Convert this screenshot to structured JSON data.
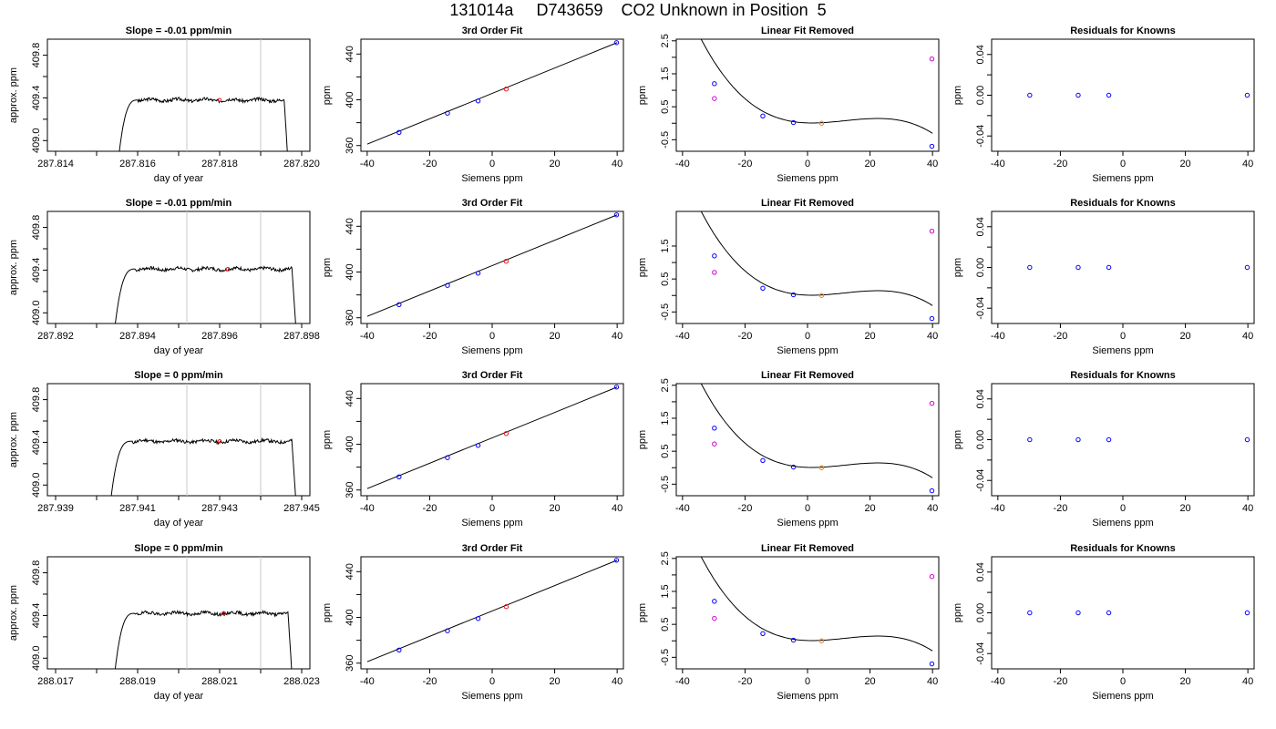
{
  "title": "131014a     D743659    CO2 Unknown in Position  5",
  "chart_data": [
    {
      "row": 0,
      "type": "line",
      "title": "Slope =  -0.01  ppm/min",
      "xlabel": "day of year",
      "ylabel": "approx. ppm",
      "xlim": [
        287.8138,
        287.8202
      ],
      "ylim": [
        408.9,
        409.95
      ],
      "x_ticks": [
        287.814,
        287.816,
        287.818,
        287.82
      ],
      "y_ticks": [
        409.0,
        409.4,
        409.8
      ],
      "vlines": [
        287.8172,
        287.819
      ],
      "marker": {
        "x": 287.818,
        "y": 409.38,
        "color": "#e41a1c"
      },
      "plateau": 409.38,
      "trace_range": [
        287.8155,
        287.8197
      ],
      "seed": 3
    },
    {
      "row": 0,
      "type": "line",
      "title": "3rd Order Fit",
      "xlabel": "Siemens ppm",
      "ylabel": "ppm",
      "xlim": [
        -42,
        42
      ],
      "ylim": [
        355,
        453
      ],
      "x_ticks": [
        -40,
        -20,
        0,
        20,
        40
      ],
      "y_ticks": [
        360,
        400,
        440
      ],
      "points": [
        {
          "x": -29.8,
          "y": 371.5,
          "color": "#0000ff"
        },
        {
          "x": -14.3,
          "y": 388.3,
          "color": "#0000ff"
        },
        {
          "x": -4.5,
          "y": 399.0,
          "color": "#0000ff"
        },
        {
          "x": 4.5,
          "y": 409.4,
          "color": "#e41a1c"
        },
        {
          "x": 39.8,
          "y": 450.0,
          "color": "#0000ff"
        }
      ],
      "fit_line": [
        [
          -40,
          361.2
        ],
        [
          40,
          450.0
        ]
      ]
    },
    {
      "row": 0,
      "type": "line",
      "title": "Linear Fit Removed",
      "xlabel": "Siemens ppm",
      "ylabel": "ppm",
      "xlim": [
        -42,
        42
      ],
      "ylim": [
        -0.85,
        2.55
      ],
      "x_ticks": [
        -40,
        -20,
        0,
        20,
        40
      ],
      "y_ticks": [
        -0.5,
        0.5,
        1.5,
        2.5
      ],
      "curve": {
        "a": -3e-05,
        "b": 0.00108,
        "c": -0.0031,
        "d": 0.01
      },
      "points": [
        {
          "x": -29.8,
          "y": 1.2,
          "color": "#0000ff"
        },
        {
          "x": -14.3,
          "y": 0.22,
          "color": "#0000ff"
        },
        {
          "x": -4.5,
          "y": 0.02,
          "color": "#0000ff"
        },
        {
          "x": 4.5,
          "y": 0.0,
          "color": "#ff7f00"
        },
        {
          "x": 39.8,
          "y": -0.7,
          "color": "#0000ff"
        },
        {
          "x": -29.8,
          "y": 0.75,
          "color": "#cc00cc"
        },
        {
          "x": 39.8,
          "y": 1.95,
          "color": "#cc00cc"
        }
      ]
    },
    {
      "row": 0,
      "type": "scatter",
      "title": "Residuals for Knowns",
      "xlabel": "Siemens ppm",
      "ylabel": "ppm",
      "xlim": [
        -42,
        42
      ],
      "ylim": [
        -0.055,
        0.055
      ],
      "x_ticks": [
        -40,
        -20,
        0,
        20,
        40
      ],
      "y_ticks": [
        -0.04,
        0.0,
        0.04
      ],
      "points": [
        {
          "x": -29.8,
          "y": 0,
          "color": "#0000ff"
        },
        {
          "x": -14.3,
          "y": 0,
          "color": "#0000ff"
        },
        {
          "x": -4.5,
          "y": 0,
          "color": "#0000ff"
        },
        {
          "x": 39.8,
          "y": 0,
          "color": "#0000ff"
        }
      ]
    },
    {
      "row": 1,
      "type": "line",
      "title": "Slope =  -0.01  ppm/min",
      "xlabel": "day of year",
      "ylabel": "approx. ppm",
      "xlim": [
        287.8918,
        287.8982
      ],
      "ylim": [
        408.9,
        409.95
      ],
      "x_ticks": [
        287.892,
        287.894,
        287.896,
        287.898
      ],
      "y_ticks": [
        409.0,
        409.4,
        409.8
      ],
      "vlines": [
        287.8952,
        287.897
      ],
      "marker": {
        "x": 287.8962,
        "y": 409.41,
        "color": "#e41a1c"
      },
      "plateau": 409.41,
      "trace_range": [
        287.8934,
        287.8979
      ],
      "seed": 7
    },
    {
      "row": 1,
      "type": "line",
      "title": "3rd Order Fit",
      "xlabel": "Siemens ppm",
      "ylabel": "ppm",
      "xlim": [
        -42,
        42
      ],
      "ylim": [
        355,
        453
      ],
      "x_ticks": [
        -40,
        -20,
        0,
        20,
        40
      ],
      "y_ticks": [
        360,
        400,
        440
      ],
      "points": [
        {
          "x": -29.8,
          "y": 371.5,
          "color": "#0000ff"
        },
        {
          "x": -14.3,
          "y": 388.3,
          "color": "#0000ff"
        },
        {
          "x": -4.5,
          "y": 399.0,
          "color": "#0000ff"
        },
        {
          "x": 4.5,
          "y": 409.4,
          "color": "#e41a1c"
        },
        {
          "x": 39.8,
          "y": 450.0,
          "color": "#0000ff"
        }
      ],
      "fit_line": [
        [
          -40,
          361.2
        ],
        [
          40,
          450.0
        ]
      ]
    },
    {
      "row": 1,
      "type": "line",
      "title": "Linear Fit Removed",
      "xlabel": "Siemens ppm",
      "ylabel": "ppm",
      "xlim": [
        -42,
        42
      ],
      "ylim": [
        -0.85,
        2.55
      ],
      "x_ticks": [
        -40,
        -20,
        0,
        20,
        40
      ],
      "y_ticks": [
        -0.5,
        0.5,
        1.5
      ],
      "curve": {
        "a": -3e-05,
        "b": 0.00108,
        "c": -0.0031,
        "d": 0.01
      },
      "points": [
        {
          "x": -29.8,
          "y": 1.2,
          "color": "#0000ff"
        },
        {
          "x": -14.3,
          "y": 0.22,
          "color": "#0000ff"
        },
        {
          "x": -4.5,
          "y": 0.02,
          "color": "#0000ff"
        },
        {
          "x": 4.5,
          "y": 0.0,
          "color": "#ff7f00"
        },
        {
          "x": 39.8,
          "y": -0.7,
          "color": "#0000ff"
        },
        {
          "x": -29.8,
          "y": 0.7,
          "color": "#cc00cc"
        },
        {
          "x": 39.8,
          "y": 1.95,
          "color": "#cc00cc"
        }
      ]
    },
    {
      "row": 1,
      "type": "scatter",
      "title": "Residuals for Knowns",
      "xlabel": "Siemens ppm",
      "ylabel": "ppm",
      "xlim": [
        -42,
        42
      ],
      "ylim": [
        -0.055,
        0.055
      ],
      "x_ticks": [
        -40,
        -20,
        0,
        20,
        40
      ],
      "y_ticks": [
        -0.04,
        0.0,
        0.04
      ],
      "points": [
        {
          "x": -29.8,
          "y": 0,
          "color": "#0000ff"
        },
        {
          "x": -14.3,
          "y": 0,
          "color": "#0000ff"
        },
        {
          "x": -4.5,
          "y": 0,
          "color": "#0000ff"
        },
        {
          "x": 39.8,
          "y": 0,
          "color": "#0000ff"
        }
      ]
    },
    {
      "row": 2,
      "type": "line",
      "title": "Slope =  0  ppm/min",
      "xlabel": "day of year",
      "ylabel": "approx. ppm",
      "xlim": [
        287.9388,
        287.9452
      ],
      "ylim": [
        408.9,
        409.95
      ],
      "x_ticks": [
        287.939,
        287.941,
        287.943,
        287.945
      ],
      "y_ticks": [
        409.0,
        409.4,
        409.8
      ],
      "vlines": [
        287.9422,
        287.944
      ],
      "marker": {
        "x": 287.943,
        "y": 409.41,
        "color": "#e41a1c"
      },
      "plateau": 409.41,
      "trace_range": [
        287.9403,
        287.9449
      ],
      "seed": 11
    },
    {
      "row": 2,
      "type": "line",
      "title": "3rd Order Fit",
      "xlabel": "Siemens ppm",
      "ylabel": "ppm",
      "xlim": [
        -42,
        42
      ],
      "ylim": [
        355,
        453
      ],
      "x_ticks": [
        -40,
        -20,
        0,
        20,
        40
      ],
      "y_ticks": [
        360,
        400,
        440
      ],
      "points": [
        {
          "x": -29.8,
          "y": 371.5,
          "color": "#0000ff"
        },
        {
          "x": -14.3,
          "y": 388.3,
          "color": "#0000ff"
        },
        {
          "x": -4.5,
          "y": 399.0,
          "color": "#0000ff"
        },
        {
          "x": 4.5,
          "y": 409.4,
          "color": "#e41a1c"
        },
        {
          "x": 39.8,
          "y": 450.0,
          "color": "#0000ff"
        }
      ],
      "fit_line": [
        [
          -40,
          361.2
        ],
        [
          40,
          450.0
        ]
      ]
    },
    {
      "row": 2,
      "type": "line",
      "title": "Linear Fit Removed",
      "xlabel": "Siemens ppm",
      "ylabel": "ppm",
      "xlim": [
        -42,
        42
      ],
      "ylim": [
        -0.85,
        2.55
      ],
      "x_ticks": [
        -40,
        -20,
        0,
        20,
        40
      ],
      "y_ticks": [
        -0.5,
        0.5,
        1.5,
        2.5
      ],
      "curve": {
        "a": -3e-05,
        "b": 0.00108,
        "c": -0.0031,
        "d": 0.01
      },
      "points": [
        {
          "x": -29.8,
          "y": 1.2,
          "color": "#0000ff"
        },
        {
          "x": -14.3,
          "y": 0.22,
          "color": "#0000ff"
        },
        {
          "x": -4.5,
          "y": 0.02,
          "color": "#0000ff"
        },
        {
          "x": 4.5,
          "y": 0.0,
          "color": "#ff7f00"
        },
        {
          "x": 39.8,
          "y": -0.7,
          "color": "#0000ff"
        },
        {
          "x": -29.8,
          "y": 0.72,
          "color": "#cc00cc"
        },
        {
          "x": 39.8,
          "y": 1.95,
          "color": "#cc00cc"
        }
      ]
    },
    {
      "row": 2,
      "type": "scatter",
      "title": "Residuals for Knowns",
      "xlabel": "Siemens ppm",
      "ylabel": "ppm",
      "xlim": [
        -42,
        42
      ],
      "ylim": [
        -0.055,
        0.055
      ],
      "x_ticks": [
        -40,
        -20,
        0,
        20,
        40
      ],
      "y_ticks": [
        -0.04,
        0.0,
        0.04
      ],
      "points": [
        {
          "x": -29.8,
          "y": 0,
          "color": "#0000ff"
        },
        {
          "x": -14.3,
          "y": 0,
          "color": "#0000ff"
        },
        {
          "x": -4.5,
          "y": 0,
          "color": "#0000ff"
        },
        {
          "x": 39.8,
          "y": 0,
          "color": "#0000ff"
        }
      ]
    },
    {
      "row": 3,
      "type": "line",
      "title": "Slope =  0  ppm/min",
      "xlabel": "day of year",
      "ylabel": "approx. ppm",
      "xlim": [
        288.0168,
        288.0232
      ],
      "ylim": [
        408.9,
        409.95
      ],
      "x_ticks": [
        288.017,
        288.019,
        288.021,
        288.023
      ],
      "y_ticks": [
        409.0,
        409.4,
        409.8
      ],
      "vlines": [
        288.0202,
        288.022
      ],
      "marker": {
        "x": 288.0211,
        "y": 409.42,
        "color": "#e41a1c"
      },
      "plateau": 409.42,
      "trace_range": [
        288.0184,
        288.0228
      ],
      "seed": 19
    },
    {
      "row": 3,
      "type": "line",
      "title": "3rd Order Fit",
      "xlabel": "Siemens ppm",
      "ylabel": "ppm",
      "xlim": [
        -42,
        42
      ],
      "ylim": [
        355,
        453
      ],
      "x_ticks": [
        -40,
        -20,
        0,
        20,
        40
      ],
      "y_ticks": [
        360,
        400,
        440
      ],
      "points": [
        {
          "x": -29.8,
          "y": 371.5,
          "color": "#0000ff"
        },
        {
          "x": -14.3,
          "y": 388.3,
          "color": "#0000ff"
        },
        {
          "x": -4.5,
          "y": 399.0,
          "color": "#0000ff"
        },
        {
          "x": 4.5,
          "y": 409.4,
          "color": "#e41a1c"
        },
        {
          "x": 39.8,
          "y": 450.0,
          "color": "#0000ff"
        }
      ],
      "fit_line": [
        [
          -40,
          361.2
        ],
        [
          40,
          450.0
        ]
      ]
    },
    {
      "row": 3,
      "type": "line",
      "title": "Linear Fit Removed",
      "xlabel": "Siemens ppm",
      "ylabel": "ppm",
      "xlim": [
        -42,
        42
      ],
      "ylim": [
        -0.85,
        2.55
      ],
      "x_ticks": [
        -40,
        -20,
        0,
        20,
        40
      ],
      "y_ticks": [
        -0.5,
        0.5,
        1.5,
        2.5
      ],
      "curve": {
        "a": -3e-05,
        "b": 0.00108,
        "c": -0.0031,
        "d": 0.01
      },
      "points": [
        {
          "x": -29.8,
          "y": 1.2,
          "color": "#0000ff"
        },
        {
          "x": -14.3,
          "y": 0.22,
          "color": "#0000ff"
        },
        {
          "x": -4.5,
          "y": 0.02,
          "color": "#0000ff"
        },
        {
          "x": 4.5,
          "y": 0.0,
          "color": "#ff7f00"
        },
        {
          "x": 39.8,
          "y": -0.7,
          "color": "#0000ff"
        },
        {
          "x": -29.8,
          "y": 0.68,
          "color": "#cc00cc"
        },
        {
          "x": 39.8,
          "y": 1.95,
          "color": "#cc00cc"
        }
      ]
    },
    {
      "row": 3,
      "type": "scatter",
      "title": "Residuals for Knowns",
      "xlabel": "Siemens ppm",
      "ylabel": "ppm",
      "xlim": [
        -42,
        42
      ],
      "ylim": [
        -0.055,
        0.055
      ],
      "x_ticks": [
        -40,
        -20,
        0,
        20,
        40
      ],
      "y_ticks": [
        -0.04,
        0.0,
        0.04
      ],
      "points": [
        {
          "x": -29.8,
          "y": 0,
          "color": "#0000ff"
        },
        {
          "x": -14.3,
          "y": 0,
          "color": "#0000ff"
        },
        {
          "x": -4.5,
          "y": 0,
          "color": "#0000ff"
        },
        {
          "x": 39.8,
          "y": 0,
          "color": "#0000ff"
        }
      ]
    }
  ]
}
